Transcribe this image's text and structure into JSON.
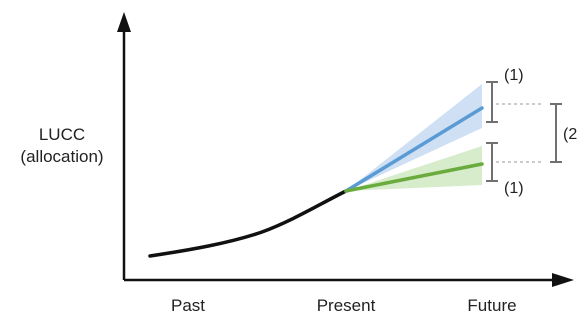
{
  "figure": {
    "y_axis_label_line1": "LUCC",
    "y_axis_label_line2": "(allocation)",
    "x_tick_labels": [
      "Past",
      "Present",
      "Future"
    ],
    "uncertainty_labels": {
      "upper_band": "(1)",
      "lower_band": "(1)",
      "between_scenarios": "(2"
    },
    "colors": {
      "history_line": "#111111",
      "scenario_blue": "#5b9bd5",
      "scenario_blue_band": "#cfe0f4",
      "scenario_green": "#6aab3e",
      "scenario_green_band": "#d6eccb",
      "error_bar": "#707070"
    }
  }
}
